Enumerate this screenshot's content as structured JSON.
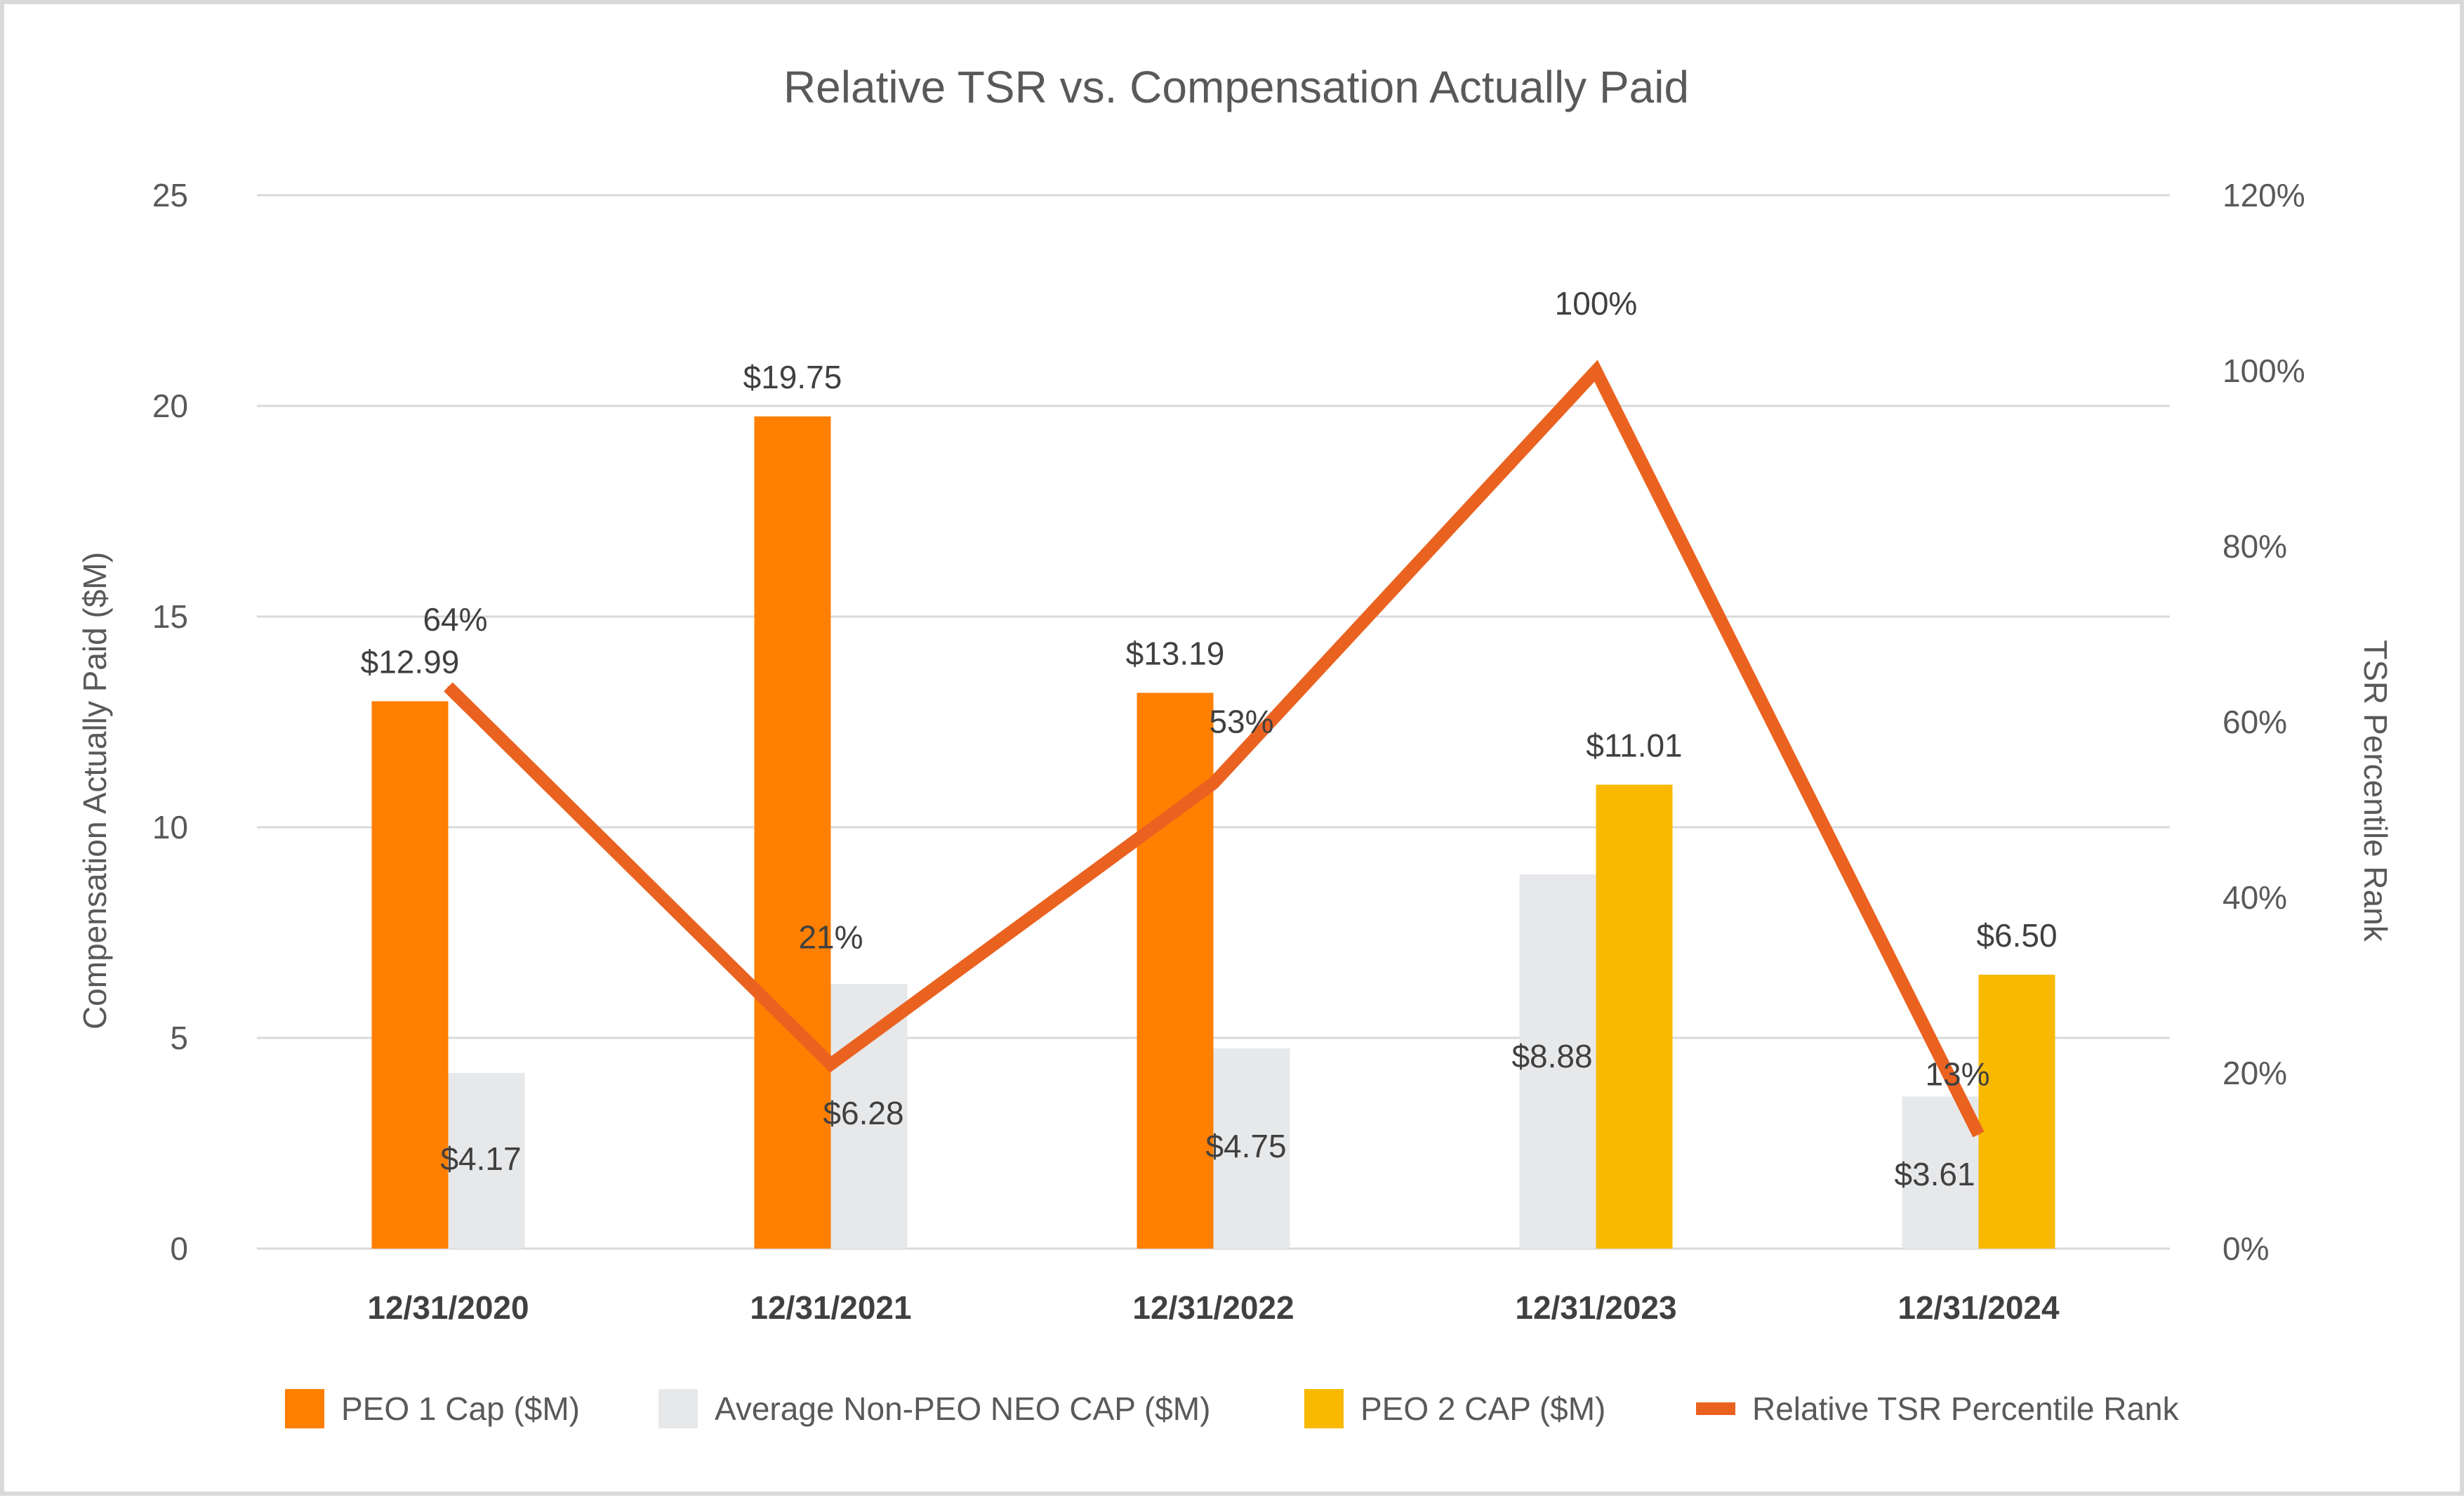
{
  "chart_data": {
    "type": "bar",
    "title": "Relative TSR vs. Compensation Actually Paid",
    "ylabel": "Compensation Actually Paid ($M)",
    "y2label": "TSR Percentile Rank",
    "categories": [
      "12/31/2020",
      "12/31/2021",
      "12/31/2022",
      "12/31/2023",
      "12/31/2024"
    ],
    "ylim": [
      0,
      25
    ],
    "yticks": [
      0,
      5,
      10,
      15,
      20,
      25
    ],
    "y2lim": [
      0,
      120
    ],
    "y2ticks": [
      "0%",
      "20%",
      "40%",
      "60%",
      "80%",
      "100%",
      "120%"
    ],
    "grid": true,
    "legend_position": "bottom",
    "series": [
      {
        "name": "PEO 1 Cap ($M)",
        "type": "bar",
        "color": "#FF7F00",
        "values": [
          12.99,
          19.75,
          13.19,
          null,
          null
        ],
        "labels": [
          "$12.99",
          "$19.75",
          "$13.19",
          "",
          ""
        ]
      },
      {
        "name": "Average Non-PEO NEO CAP ($M)",
        "type": "bar",
        "color": "#E7E8EA",
        "values": [
          4.17,
          6.28,
          4.75,
          8.88,
          3.61
        ],
        "labels": [
          "$4.17",
          "$6.28",
          "$4.75",
          "$8.88",
          "$3.61"
        ]
      },
      {
        "name": "PEO 2 CAP ($M)",
        "type": "bar",
        "color": "#F9B900",
        "values": [
          null,
          null,
          null,
          11.01,
          6.5
        ],
        "labels": [
          "",
          "",
          "",
          "$11.01",
          "$6.50"
        ]
      },
      {
        "name": "Relative TSR Percentile Rank",
        "type": "line",
        "axis": "right",
        "color": "#EA6220",
        "values": [
          64,
          21,
          53,
          100,
          13
        ],
        "labels": [
          "64%",
          "21%",
          "53%",
          "100%",
          "13%"
        ]
      }
    ]
  }
}
